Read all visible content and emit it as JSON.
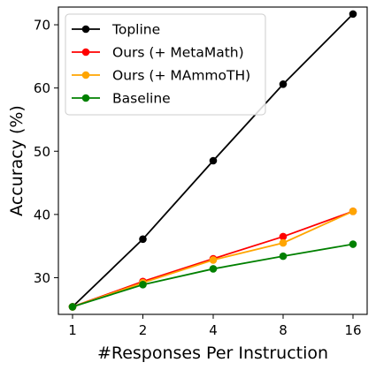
{
  "chart_data": {
    "type": "line",
    "title": "",
    "xlabel": "#Responses Per Instruction",
    "ylabel": "Accuracy (%)",
    "x": [
      1,
      2,
      4,
      8,
      16
    ],
    "x_tick_labels": [
      "1",
      "2",
      "4",
      "8",
      "16"
    ],
    "x_scale": "log2",
    "ylim": [
      24.2,
      72.8
    ],
    "y_ticks": [
      30,
      40,
      50,
      60,
      70
    ],
    "y_tick_labels": [
      "30",
      "40",
      "50",
      "60",
      "70"
    ],
    "grid": false,
    "legend_position": "top-left",
    "series": [
      {
        "name": "Topline",
        "color": "#000000",
        "values": [
          25.4,
          36.1,
          48.5,
          60.6,
          71.7
        ]
      },
      {
        "name": "Ours (+ MetaMath)",
        "color": "#ff0000",
        "values": [
          25.4,
          29.4,
          33.0,
          36.5,
          40.5
        ]
      },
      {
        "name": "Ours (+ MAmmoTH)",
        "color": "#ffa500",
        "values": [
          25.4,
          29.2,
          32.8,
          35.5,
          40.5
        ]
      },
      {
        "name": "Baseline",
        "color": "#008000",
        "values": [
          25.4,
          28.9,
          31.4,
          33.4,
          35.3
        ]
      }
    ]
  }
}
